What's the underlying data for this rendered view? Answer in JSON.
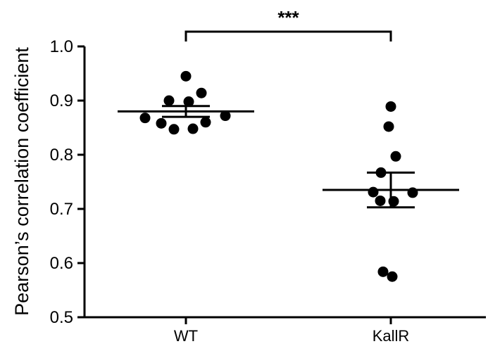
{
  "chart_data": {
    "type": "scatter",
    "ylabel": "Pearson’s correlation coefficient",
    "ylim": [
      0.5,
      1.0
    ],
    "yticks": [
      0.5,
      0.6,
      0.7,
      0.8,
      0.9,
      1.0
    ],
    "ytick_labels": [
      "0.5",
      "0.6",
      "0.7",
      "0.8",
      "0.9",
      "1.0"
    ],
    "categories": [
      "WT",
      "KallR"
    ],
    "series": [
      {
        "category": "WT",
        "values": [
          0.945,
          0.914,
          0.9,
          0.898,
          0.872,
          0.868,
          0.86,
          0.858,
          0.848,
          0.847
        ],
        "mean": 0.88,
        "sem": 0.01
      },
      {
        "category": "KallR",
        "values": [
          0.889,
          0.852,
          0.797,
          0.767,
          0.731,
          0.73,
          0.715,
          0.714,
          0.584,
          0.575
        ],
        "mean": 0.735,
        "sem": 0.032
      }
    ],
    "annotation": {
      "text": "***",
      "between": [
        "WT",
        "KallR"
      ]
    },
    "colors": {
      "points": "#000000",
      "axis": "#000000"
    }
  }
}
